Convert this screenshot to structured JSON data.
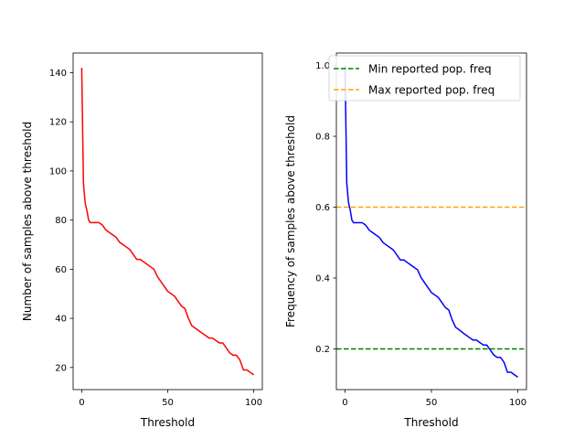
{
  "chart_data": [
    {
      "type": "line",
      "title": "",
      "xlabel": "Threshold",
      "ylabel": "Number of samples above threshold",
      "xlim": [
        -5,
        105
      ],
      "ylim": [
        11,
        148
      ],
      "xticks": [
        0,
        50,
        100
      ],
      "yticks": [
        20,
        40,
        60,
        80,
        100,
        120,
        140
      ],
      "grid": false,
      "series": [
        {
          "color": "#ff0000",
          "x": [
            0,
            1,
            2,
            3,
            4,
            5,
            6,
            8,
            10,
            12,
            14,
            16,
            18,
            20,
            22,
            24,
            26,
            28,
            30,
            32,
            34,
            36,
            38,
            40,
            42,
            44,
            46,
            48,
            50,
            52,
            54,
            56,
            58,
            60,
            62,
            64,
            66,
            68,
            70,
            72,
            74,
            76,
            78,
            80,
            82,
            84,
            86,
            88,
            90,
            92,
            94,
            96,
            98,
            100
          ],
          "y": [
            142,
            95,
            87,
            84,
            80,
            79,
            79,
            79,
            79,
            78,
            76,
            75,
            74,
            73,
            71,
            70,
            69,
            68,
            66,
            64,
            64,
            63,
            62,
            61,
            60,
            57,
            55,
            53,
            51,
            50,
            49,
            47,
            45,
            44,
            40,
            37,
            36,
            35,
            34,
            33,
            32,
            32,
            31,
            30,
            30,
            28,
            26,
            25,
            25,
            23,
            19,
            19,
            18,
            17
          ]
        }
      ]
    },
    {
      "type": "line",
      "title": "",
      "xlabel": "Threshold",
      "ylabel": "Frequency of samples above threshold",
      "xlim": [
        -5,
        105
      ],
      "ylim": [
        0.085,
        1.035
      ],
      "xticks": [
        0,
        50,
        100
      ],
      "yticks": [
        0.2,
        0.4,
        0.6,
        0.8,
        1.0
      ],
      "grid": false,
      "legend_position": "upper-right",
      "series": [
        {
          "color": "#0000ff",
          "x": [
            0,
            1,
            2,
            3,
            4,
            5,
            6,
            8,
            10,
            12,
            14,
            16,
            18,
            20,
            22,
            24,
            26,
            28,
            30,
            32,
            34,
            36,
            38,
            40,
            42,
            44,
            46,
            48,
            50,
            52,
            54,
            56,
            58,
            60,
            62,
            64,
            66,
            68,
            70,
            72,
            74,
            76,
            78,
            80,
            82,
            84,
            86,
            88,
            90,
            92,
            94,
            96,
            98,
            100
          ],
          "y": [
            1.0,
            0.669,
            0.613,
            0.592,
            0.563,
            0.556,
            0.556,
            0.556,
            0.556,
            0.549,
            0.535,
            0.528,
            0.521,
            0.514,
            0.5,
            0.493,
            0.486,
            0.479,
            0.465,
            0.451,
            0.451,
            0.444,
            0.437,
            0.43,
            0.423,
            0.401,
            0.387,
            0.373,
            0.359,
            0.352,
            0.345,
            0.331,
            0.317,
            0.31,
            0.282,
            0.261,
            0.254,
            0.246,
            0.239,
            0.232,
            0.225,
            0.225,
            0.218,
            0.211,
            0.211,
            0.197,
            0.183,
            0.176,
            0.176,
            0.162,
            0.134,
            0.134,
            0.127,
            0.12
          ]
        }
      ],
      "reference_lines": [
        {
          "label": "Min reported pop. freq",
          "y": 0.2,
          "color": "#008000",
          "style": "dashed"
        },
        {
          "label": "Max reported pop. freq",
          "y": 0.6,
          "color": "#ffa500",
          "style": "dashed"
        }
      ]
    }
  ]
}
